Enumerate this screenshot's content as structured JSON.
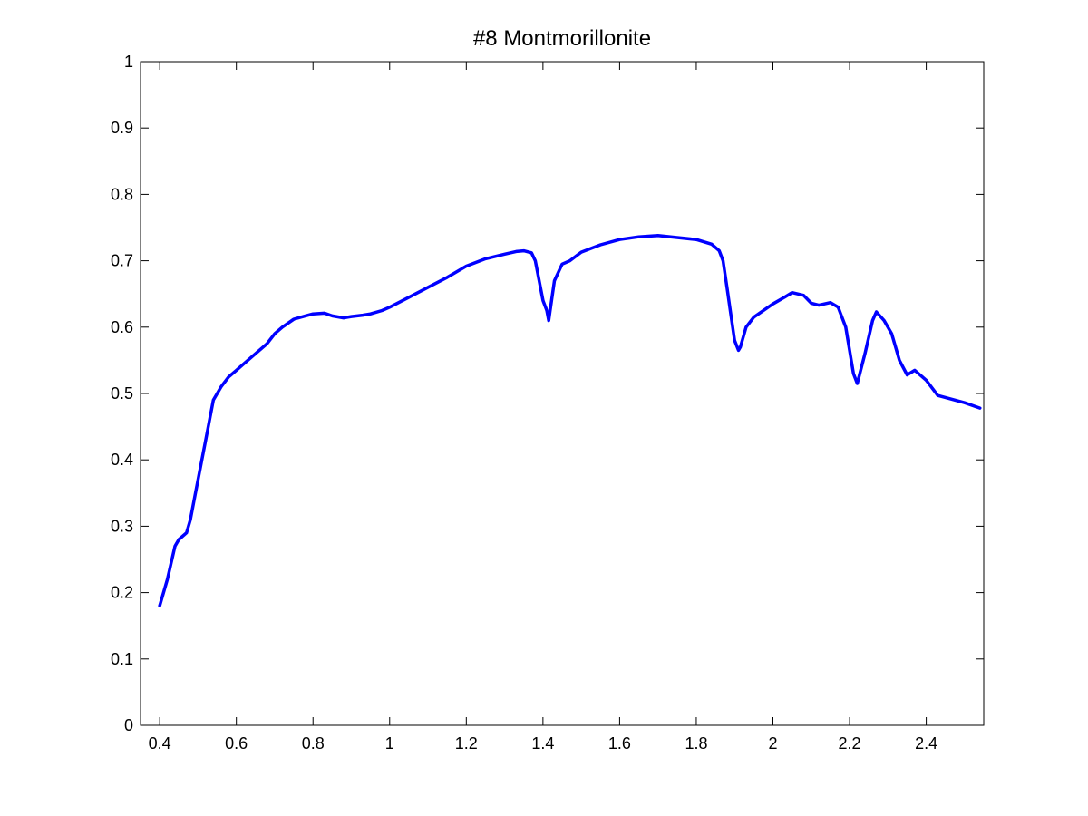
{
  "chart_data": {
    "type": "line",
    "title": "#8 Montmorillonite",
    "xlabel": "",
    "ylabel": "",
    "xlim": [
      0.35,
      2.55
    ],
    "ylim": [
      0,
      1
    ],
    "x_ticks": [
      0.4,
      0.6,
      0.8,
      1.0,
      1.2,
      1.4,
      1.6,
      1.8,
      2.0,
      2.2,
      2.4
    ],
    "x_tick_labels": [
      "0.4",
      "0.6",
      "0.8",
      "1",
      "1.2",
      "1.4",
      "1.6",
      "1.8",
      "2",
      "2.2",
      "2.4"
    ],
    "y_ticks": [
      0,
      0.1,
      0.2,
      0.3,
      0.4,
      0.5,
      0.6,
      0.7,
      0.8,
      0.9,
      1.0
    ],
    "y_tick_labels": [
      "0",
      "0.1",
      "0.2",
      "0.3",
      "0.4",
      "0.5",
      "0.6",
      "0.7",
      "0.8",
      "0.9",
      "1"
    ],
    "grid": false,
    "legend": "none",
    "line_color": "#0000ff",
    "series": [
      {
        "x": [
          0.4,
          0.42,
          0.44,
          0.45,
          0.47,
          0.48,
          0.49,
          0.5,
          0.52,
          0.54,
          0.56,
          0.58,
          0.6,
          0.62,
          0.65,
          0.68,
          0.7,
          0.72,
          0.75,
          0.78,
          0.8,
          0.83,
          0.85,
          0.88,
          0.9,
          0.93,
          0.95,
          0.98,
          1.0,
          1.05,
          1.1,
          1.15,
          1.2,
          1.25,
          1.3,
          1.33,
          1.35,
          1.37,
          1.38,
          1.4,
          1.41,
          1.415,
          1.42,
          1.43,
          1.45,
          1.47,
          1.5,
          1.55,
          1.6,
          1.65,
          1.7,
          1.75,
          1.8,
          1.84,
          1.86,
          1.87,
          1.88,
          1.89,
          1.9,
          1.91,
          1.915,
          1.93,
          1.95,
          2.0,
          2.03,
          2.05,
          2.08,
          2.1,
          2.12,
          2.15,
          2.17,
          2.19,
          2.21,
          2.22,
          2.24,
          2.26,
          2.27,
          2.29,
          2.31,
          2.33,
          2.35,
          2.37,
          2.4,
          2.43,
          2.45,
          2.5,
          2.54
        ],
        "y": [
          0.18,
          0.22,
          0.27,
          0.28,
          0.29,
          0.31,
          0.34,
          0.37,
          0.43,
          0.49,
          0.51,
          0.525,
          0.535,
          0.545,
          0.56,
          0.575,
          0.59,
          0.6,
          0.612,
          0.617,
          0.62,
          0.621,
          0.617,
          0.614,
          0.616,
          0.618,
          0.62,
          0.625,
          0.63,
          0.645,
          0.66,
          0.675,
          0.692,
          0.703,
          0.71,
          0.714,
          0.715,
          0.712,
          0.7,
          0.64,
          0.625,
          0.61,
          0.63,
          0.67,
          0.695,
          0.7,
          0.713,
          0.724,
          0.732,
          0.736,
          0.738,
          0.735,
          0.732,
          0.725,
          0.715,
          0.7,
          0.66,
          0.62,
          0.58,
          0.565,
          0.57,
          0.6,
          0.615,
          0.635,
          0.645,
          0.652,
          0.648,
          0.636,
          0.633,
          0.637,
          0.63,
          0.6,
          0.53,
          0.515,
          0.56,
          0.61,
          0.623,
          0.61,
          0.59,
          0.55,
          0.528,
          0.535,
          0.52,
          0.497,
          0.494,
          0.486,
          0.478
        ]
      }
    ]
  }
}
